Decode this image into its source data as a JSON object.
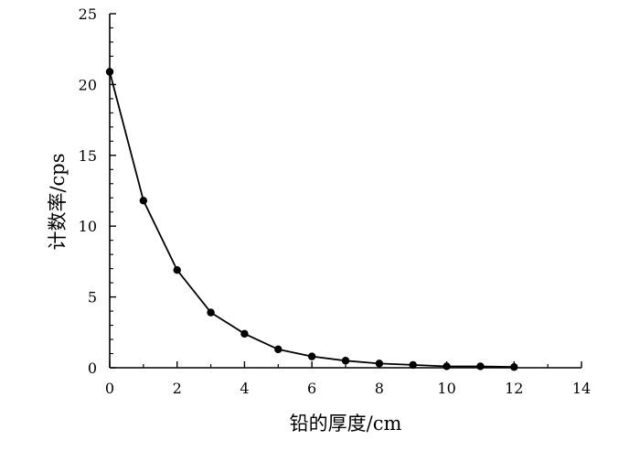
{
  "chart_data": {
    "type": "line",
    "xlabel": "铅的厚度/cm",
    "ylabel": "计数率/cps",
    "xlim": [
      0,
      14
    ],
    "ylim": [
      0,
      25
    ],
    "x_ticks": [
      0,
      2,
      4,
      6,
      8,
      10,
      12,
      14
    ],
    "y_ticks": [
      0,
      5,
      10,
      15,
      20,
      25
    ],
    "x_tick_labels": [
      "0",
      "2",
      "4",
      "6",
      "8",
      "10",
      "12",
      "14"
    ],
    "y_tick_labels": [
      "0",
      "5",
      "10",
      "15",
      "20",
      "25"
    ],
    "grid": false,
    "legend": "none",
    "series": [
      {
        "x": [
          0,
          1,
          2,
          3,
          4,
          5,
          6,
          7,
          8,
          9,
          10,
          11,
          12
        ],
        "y": [
          20.9,
          11.8,
          6.9,
          3.9,
          2.4,
          1.3,
          0.8,
          0.5,
          0.3,
          0.2,
          0.1,
          0.1,
          0.05
        ],
        "color": "#000000",
        "marker": "circle"
      }
    ]
  }
}
